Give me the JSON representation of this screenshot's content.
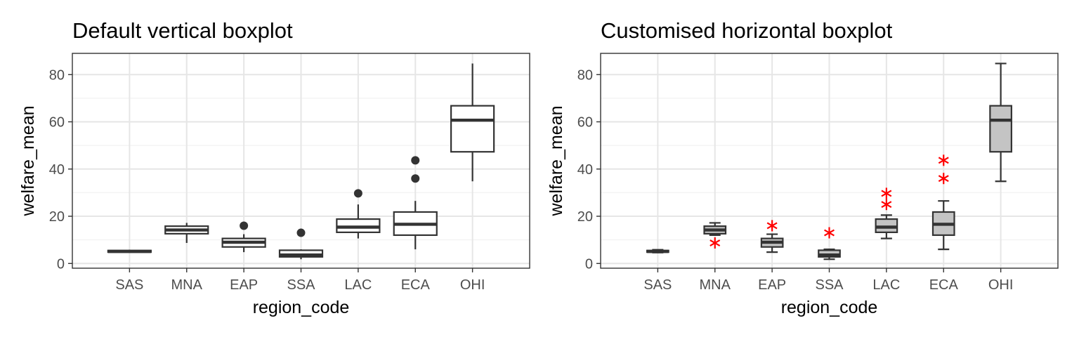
{
  "chart_data": [
    {
      "type": "boxplot",
      "title": "Default vertical boxplot",
      "xlabel": "region_code",
      "ylabel": "welfare_mean",
      "ylim": [
        -2,
        89
      ],
      "yticks": [
        0,
        20,
        40,
        60,
        80
      ],
      "grid": true,
      "categories": [
        "SAS",
        "MNA",
        "EAP",
        "SSA",
        "LAC",
        "ECA",
        "OHI"
      ],
      "boxes": [
        {
          "q1": 4.8,
          "median": 5.1,
          "q3": 5.5,
          "lower": 4.6,
          "upper": 5.8,
          "outliers": []
        },
        {
          "q1": 12.6,
          "median": 14.2,
          "q3": 15.8,
          "lower": 8.7,
          "upper": 17.2,
          "outliers": []
        },
        {
          "q1": 7.0,
          "median": 9.0,
          "q3": 10.6,
          "lower": 4.8,
          "upper": 12.4,
          "outliers": [
            16.0
          ]
        },
        {
          "q1": 2.8,
          "median": 3.6,
          "q3": 5.6,
          "lower": 1.8,
          "upper": 6.0,
          "outliers": [
            13.0
          ]
        },
        {
          "q1": 13.2,
          "median": 15.4,
          "q3": 18.8,
          "lower": 10.6,
          "upper": 25.0,
          "outliers": [
            29.7
          ]
        },
        {
          "q1": 12.0,
          "median": 16.6,
          "q3": 21.8,
          "lower": 6.0,
          "upper": 26.5,
          "outliers": [
            36.0,
            43.7
          ]
        },
        {
          "q1": 47.3,
          "median": 60.7,
          "q3": 66.8,
          "lower": 34.8,
          "upper": 84.7,
          "outliers": []
        }
      ],
      "box_fill": "#ffffff",
      "outlier_color": "#333333",
      "outlier_shape": "dot"
    },
    {
      "type": "boxplot",
      "title": "Customised horizontal boxplot",
      "xlabel": "region_code",
      "ylabel": "welfare_mean",
      "ylim": [
        -2,
        89
      ],
      "yticks": [
        0,
        20,
        40,
        60,
        80
      ],
      "grid": true,
      "categories": [
        "SAS",
        "MNA",
        "EAP",
        "SSA",
        "LAC",
        "ECA",
        "OHI"
      ],
      "boxes": [
        {
          "q1": 4.8,
          "median": 5.1,
          "q3": 5.5,
          "lower": 4.6,
          "upper": 5.8,
          "outliers": []
        },
        {
          "q1": 12.6,
          "median": 14.2,
          "q3": 15.8,
          "lower": 12.0,
          "upper": 17.2,
          "outliers": [
            8.7
          ]
        },
        {
          "q1": 7.0,
          "median": 9.0,
          "q3": 10.6,
          "lower": 4.8,
          "upper": 12.4,
          "outliers": [
            16.0
          ]
        },
        {
          "q1": 2.8,
          "median": 3.6,
          "q3": 5.6,
          "lower": 1.8,
          "upper": 6.0,
          "outliers": [
            13.0
          ]
        },
        {
          "q1": 13.2,
          "median": 15.4,
          "q3": 18.8,
          "lower": 10.6,
          "upper": 20.5,
          "outliers": [
            25.0,
            29.7
          ]
        },
        {
          "q1": 12.0,
          "median": 16.6,
          "q3": 21.8,
          "lower": 6.0,
          "upper": 26.5,
          "outliers": [
            36.0,
            43.7
          ]
        },
        {
          "q1": 47.3,
          "median": 60.7,
          "q3": 66.8,
          "lower": 34.8,
          "upper": 84.7,
          "outliers": []
        }
      ],
      "box_fill": "#c4c4c4",
      "outlier_color": "#ff0000",
      "outlier_shape": "asterisk"
    }
  ]
}
